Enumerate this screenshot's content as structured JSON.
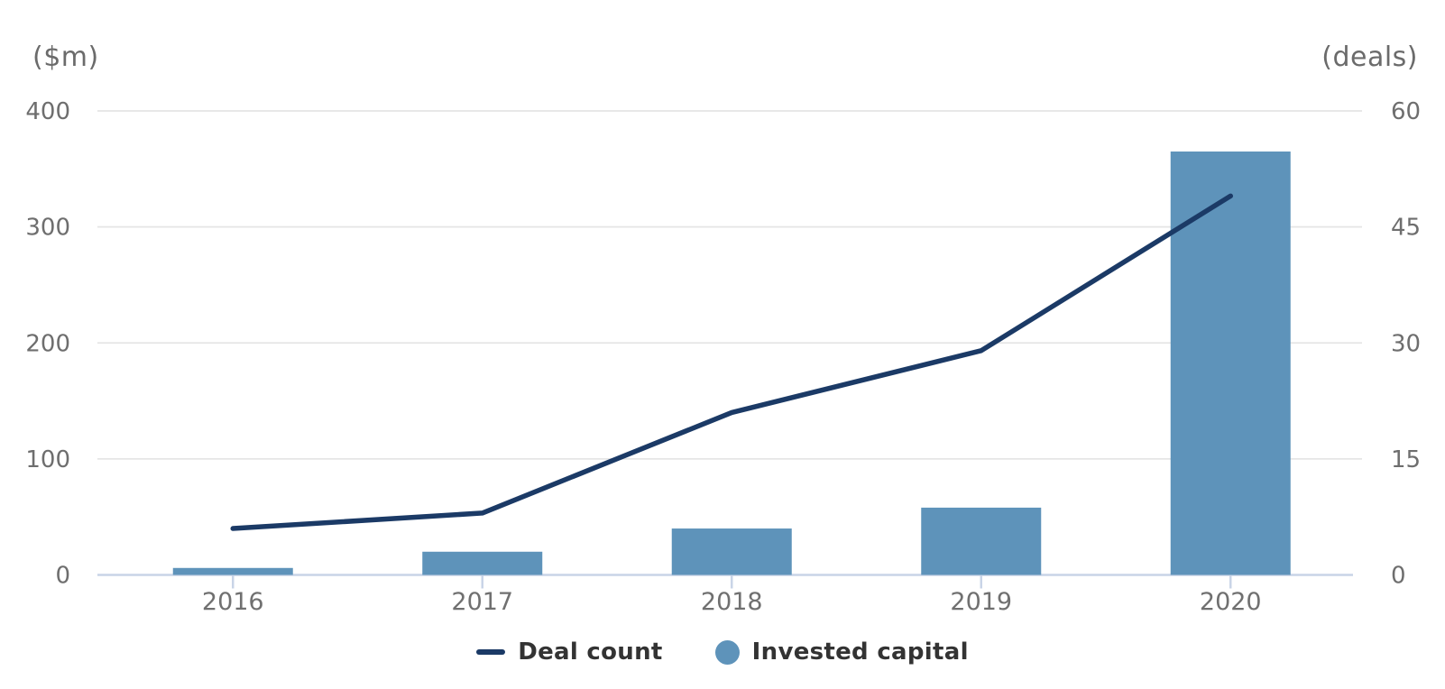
{
  "chart_data": {
    "type": "combo",
    "categories": [
      "2016",
      "2017",
      "2018",
      "2019",
      "2020"
    ],
    "series": [
      {
        "name": "Deal count",
        "type": "line",
        "axis": "right",
        "values": [
          6,
          8,
          21,
          29,
          49
        ],
        "color": "#1b3a66"
      },
      {
        "name": "Invested capital",
        "type": "bar",
        "axis": "left",
        "values": [
          6,
          20,
          40,
          58,
          365
        ],
        "color": "#5e93ba"
      }
    ],
    "left_axis": {
      "title": "($m)",
      "ticks": [
        0,
        100,
        200,
        300,
        400
      ],
      "range": [
        0,
        400
      ]
    },
    "right_axis": {
      "title": "(deals)",
      "ticks": [
        0,
        15,
        30,
        45,
        60
      ],
      "range": [
        0,
        60
      ]
    },
    "grid": "horizontal gridlines on",
    "legend_position": "bottom center",
    "colors": {
      "gridline": "#e5e5e5",
      "baseline": "#c9d4e7",
      "tick_label": "#6e6e6e",
      "category_label": "#707070"
    }
  }
}
